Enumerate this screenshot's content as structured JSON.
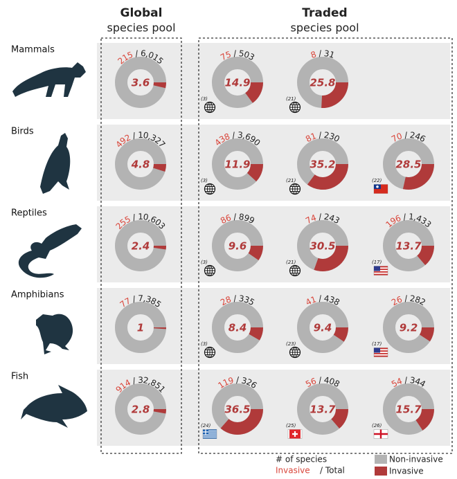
{
  "chart_data": {
    "type": "donut",
    "separator": "/",
    "colors": {
      "invasive": "#b03a3a",
      "non_invasive": "#b3b3b3",
      "invasive_text": "#d9453a",
      "background": "#ebebeb"
    },
    "panels": [
      {
        "title": "Global",
        "subtitle": "species pool"
      },
      {
        "title": "Traded",
        "subtitle": "species pool"
      }
    ],
    "rows": [
      {
        "label": "Mammals",
        "global": {
          "invasive": 215,
          "total": 6015,
          "total_label": "6,015",
          "percent": 3.6
        },
        "traded": [
          {
            "invasive": 75,
            "total": 503,
            "percent": 14.9,
            "ref": "(3)",
            "icon": "globe"
          },
          {
            "invasive": 8,
            "total": 31,
            "percent": 25.8,
            "ref": "(21)",
            "icon": "globe"
          }
        ]
      },
      {
        "label": "Birds",
        "global": {
          "invasive": 492,
          "total": 10327,
          "total_label": "10,327",
          "percent": 4.8
        },
        "traded": [
          {
            "invasive": 438,
            "total": 3690,
            "total_label": "3,690",
            "percent": 11.9,
            "ref": "(3)",
            "icon": "globe"
          },
          {
            "invasive": 81,
            "total": 230,
            "percent": 35.2,
            "ref": "(21)",
            "icon": "globe"
          },
          {
            "invasive": 70,
            "total": 246,
            "percent": 28.5,
            "ref": "(22)",
            "icon": "taiwan"
          }
        ]
      },
      {
        "label": "Reptiles",
        "global": {
          "invasive": 255,
          "total": 10603,
          "total_label": "10,603",
          "percent": 2.4
        },
        "traded": [
          {
            "invasive": 86,
            "total": 899,
            "percent": 9.6,
            "ref": "(3)",
            "icon": "globe"
          },
          {
            "invasive": 74,
            "total": 243,
            "percent": 30.5,
            "ref": "(21)",
            "icon": "globe"
          },
          {
            "invasive": 196,
            "total": 1433,
            "total_label": "1,433",
            "percent": 13.7,
            "ref": "(17)",
            "icon": "usa"
          }
        ]
      },
      {
        "label": "Amphibians",
        "global": {
          "invasive": 77,
          "total": 7385,
          "total_label": "7,385",
          "percent": 1
        },
        "traded": [
          {
            "invasive": 28,
            "total": 335,
            "percent": 8.4,
            "ref": "(3)",
            "icon": "globe"
          },
          {
            "invasive": 41,
            "total": 438,
            "percent": 9.4,
            "ref": "(23)",
            "icon": "globe"
          },
          {
            "invasive": 26,
            "total": 282,
            "percent": 9.2,
            "ref": "(17)",
            "icon": "usa"
          }
        ]
      },
      {
        "label": "Fish",
        "global": {
          "invasive": 914,
          "total": 32851,
          "total_label": "32,851",
          "percent": 2.8
        },
        "traded": [
          {
            "invasive": 119,
            "total": 326,
            "percent": 36.5,
            "ref": "(24)",
            "icon": "greece"
          },
          {
            "invasive": 56,
            "total": 408,
            "percent": 13.7,
            "ref": "(25)",
            "icon": "switzerland"
          },
          {
            "invasive": 54,
            "total": 344,
            "percent": 15.7,
            "ref": "(26)",
            "icon": "england"
          }
        ]
      }
    ],
    "legend": {
      "count_title": "# of species",
      "invasive_text": "Invasive",
      "total_text": "/ Total",
      "items": [
        {
          "name": "Non-invasive",
          "color": "#b3b3b3"
        },
        {
          "name": "Invasive",
          "color": "#b03a3a"
        }
      ]
    }
  }
}
